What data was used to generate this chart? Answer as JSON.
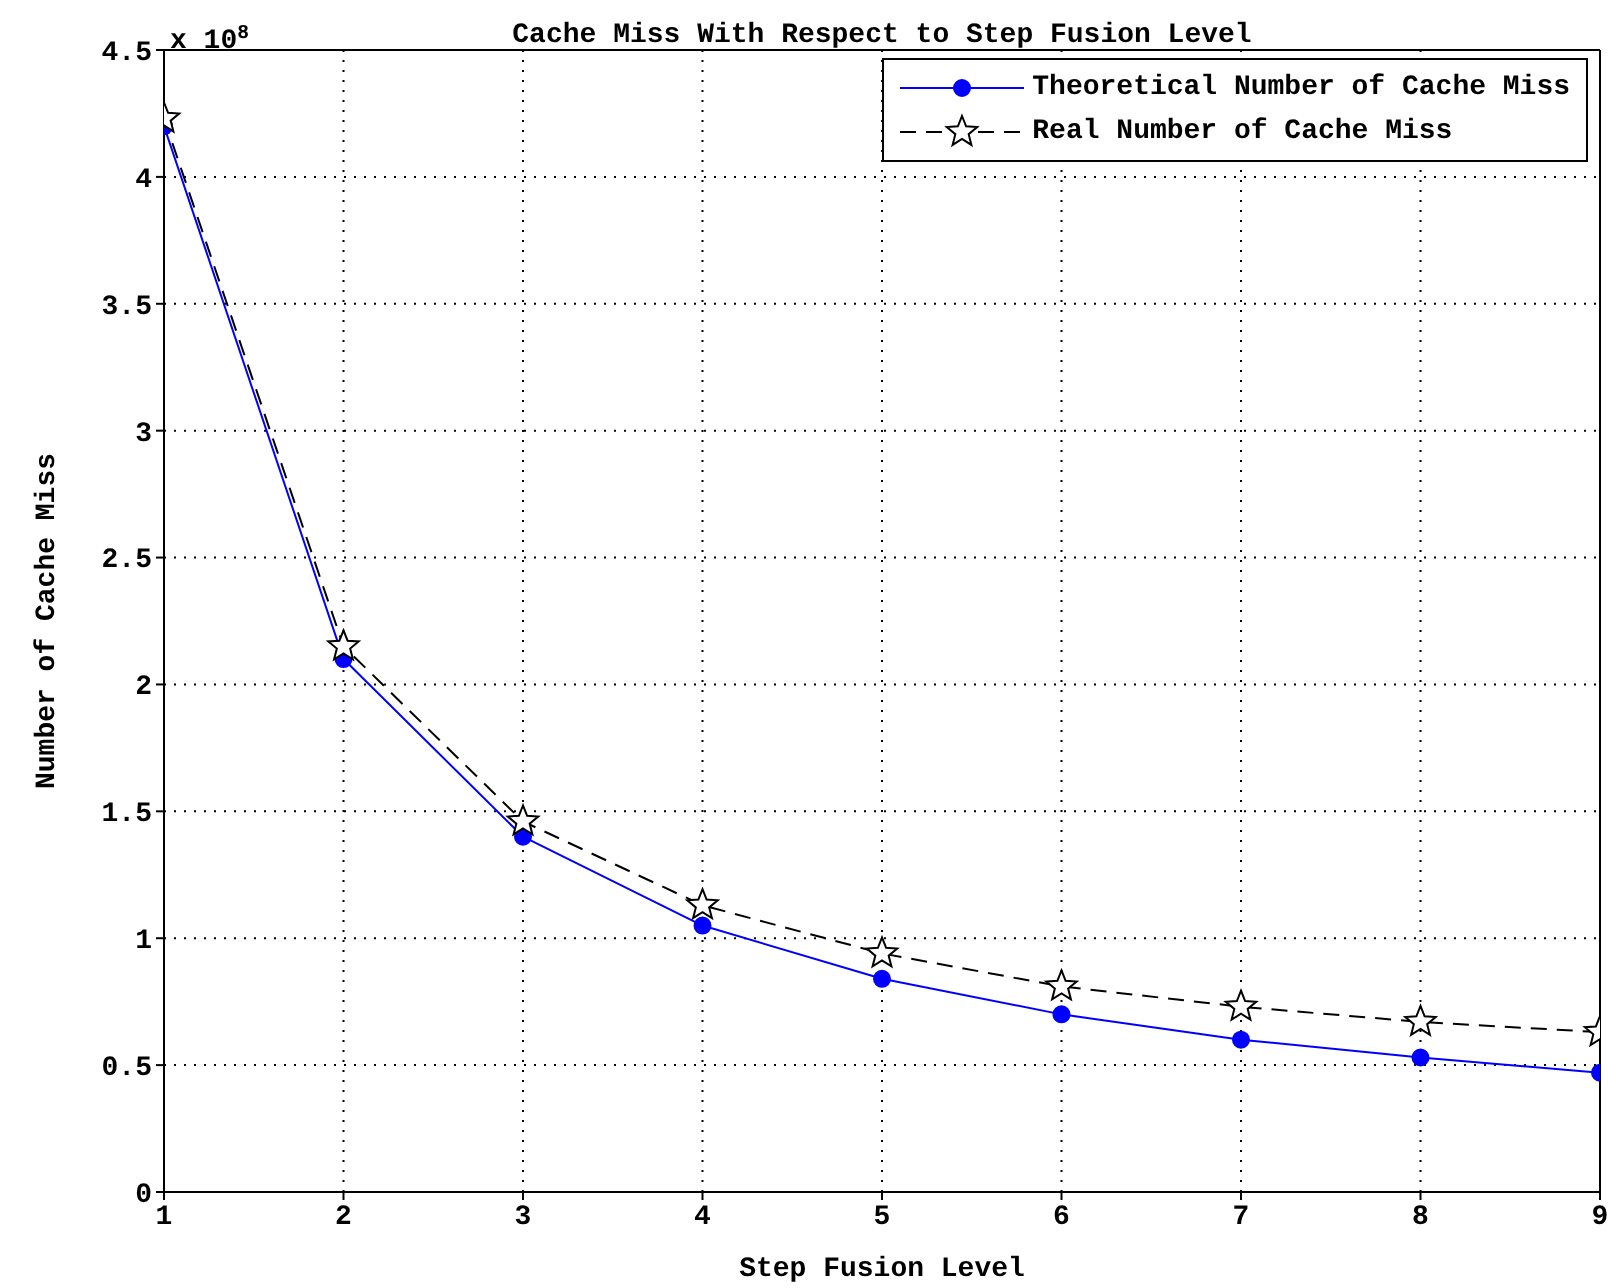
{
  "chart_data": {
    "type": "line",
    "title": "Cache Miss With Respect to Step Fusion Level",
    "xlabel": "Step Fusion Level",
    "ylabel": "Number of Cache Miss",
    "annotations": [
      "x 10$^{8}$"
    ],
    "x": [
      1,
      2,
      3,
      4,
      5,
      6,
      7,
      8,
      9
    ],
    "series": [
      {
        "name": "Theoretical Number of Cache Miss",
        "color": "#0000ff",
        "marker": "circle",
        "line_style": "solid",
        "values": [
          4.2,
          2.1,
          1.4,
          1.05,
          0.84,
          0.7,
          0.6,
          0.53,
          0.47
        ]
      },
      {
        "name": "Real Number of Cache Miss",
        "color": "#000000",
        "marker": "star",
        "line_style": "dashed",
        "values": [
          4.23,
          2.15,
          1.46,
          1.13,
          0.94,
          0.81,
          0.73,
          0.67,
          0.63
        ]
      }
    ],
    "xlim": [
      1,
      9
    ],
    "xticks": [
      1,
      2,
      3,
      4,
      5,
      6,
      7,
      8,
      9
    ],
    "ylim": [
      0,
      4.5
    ],
    "yticks": [
      0,
      0.5,
      1,
      1.5,
      2,
      2.5,
      3,
      3.5,
      4,
      4.5
    ],
    "grid": true,
    "legend": "top right"
  }
}
